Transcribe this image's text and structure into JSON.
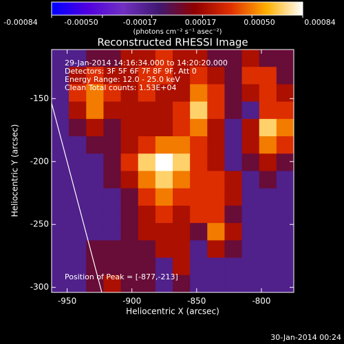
{
  "chart_data": {
    "type": "heatmap",
    "title": "Reconstructed RHESSI Image",
    "xlabel": "Heliocentric X (arcsec)",
    "ylabel": "Heliocentric Y (arcsec)",
    "xlim": [
      -962,
      -775
    ],
    "ylim": [
      -304,
      -111
    ],
    "xticks": [
      -950,
      -900,
      -850,
      -800
    ],
    "yticks": [
      -150,
      -200,
      -250,
      -300
    ],
    "colorbar": {
      "label": "(photons cm⁻² s⁻¹ asec⁻²)",
      "zlim": [
        -0.00084,
        0.00084
      ],
      "ticks": [
        -0.00084,
        -0.0005,
        -0.00017,
        0.00017,
        0.0005,
        0.00084
      ],
      "tick_labels": [
        "-0.00084",
        "-0.00050",
        "-0.00017",
        "0.00017",
        "0.00050",
        "0.00084"
      ],
      "colors": [
        "#0000ff",
        "#5000e0",
        "#7030c0",
        "#401870",
        "#900000",
        "#e03000",
        "#ffb000",
        "#ffffff"
      ]
    },
    "annotations": [
      "29-Jan-2014 14:16:34.000 to 14:20:20.000",
      "Detectors: 3F 5F 6F 7F 8F 9F, Att 0",
      "Energy Range: 12.0 - 25.0 keV",
      "Clean    Total counts: 1.53E+04"
    ],
    "peak_label": "Position of Peak = [-877,-213]",
    "footer": "30-Jan-2014 00:24",
    "z": [
      [
        -0.0002,
        -0.0002,
        0,
        0,
        0.0002,
        0.0002,
        0.00035,
        0.0002,
        0.0002,
        0,
        0,
        0.0002,
        0,
        0
      ],
      [
        -0.0002,
        0.0002,
        0.00035,
        0.0002,
        0.0002,
        0.00035,
        0.00035,
        0.0002,
        0.00035,
        0.0002,
        0,
        0.00035,
        0.00035,
        0
      ],
      [
        -0.0002,
        0.00035,
        0.0005,
        0.00035,
        0.0002,
        0.00035,
        0.0002,
        0.0002,
        0.0005,
        0.00035,
        0,
        0.0002,
        0.00035,
        0.0002
      ],
      [
        -0.0002,
        0.0002,
        0.0005,
        0.0002,
        0.0002,
        0.0002,
        0.0002,
        0.00035,
        0.0007,
        0.00035,
        0,
        -0.0002,
        0.00035,
        0.00035
      ],
      [
        -0.0002,
        0,
        0.0002,
        0,
        0.0002,
        0.0002,
        0.0002,
        0.00035,
        0.0005,
        0.0002,
        -0.0002,
        0.0002,
        0.0007,
        0.0005
      ],
      [
        -0.0002,
        -0.0002,
        0,
        0,
        0.0002,
        0.00035,
        0.0005,
        0.0005,
        0.00035,
        0.0002,
        -0.0002,
        0.0002,
        0.0005,
        0.00035
      ],
      [
        -0.0002,
        -0.0002,
        -0.0002,
        0,
        0.00035,
        0.0007,
        0.00084,
        0.0007,
        0.00035,
        0.0002,
        -0.0002,
        0,
        0.0002,
        0
      ],
      [
        -0.0002,
        -0.0002,
        -0.0002,
        0,
        0.0002,
        0.0005,
        0.0007,
        0.0005,
        0.00035,
        0.00035,
        0.0002,
        -0.0002,
        0,
        -0.0002
      ],
      [
        -0.0002,
        -0.0002,
        -0.0002,
        -0.0002,
        0,
        0.00035,
        0.0005,
        0.00035,
        0.00035,
        0.00035,
        0.0002,
        -0.0002,
        -0.0002,
        -0.0002
      ],
      [
        -0.0002,
        -0.0002,
        -0.0002,
        -0.0002,
        0,
        0.0002,
        0.00035,
        0.0002,
        0.00035,
        0.00035,
        0,
        -0.0002,
        -0.0002,
        -0.0002
      ],
      [
        -0.0002,
        -0.0002,
        -0.0002,
        -0.0002,
        0,
        0.0002,
        0.0002,
        0.0002,
        0,
        0.0005,
        0.0002,
        -0.0002,
        -0.0002,
        -0.0002
      ],
      [
        -0.0002,
        -0.0002,
        0,
        0,
        0,
        0,
        0.0002,
        0.0002,
        -0.0002,
        0.0002,
        0,
        -0.0002,
        -0.0002,
        -0.0002
      ],
      [
        -0.0002,
        -0.0002,
        0,
        0,
        0,
        0,
        -0.0002,
        0.0002,
        -0.0002,
        -0.0002,
        -0.0002,
        -0.0002,
        -0.0002,
        -0.0002
      ],
      [
        -0.0002,
        -0.0002,
        0,
        0.0002,
        0,
        0,
        -0.0002,
        0,
        -0.0002,
        -0.0002,
        -0.0002,
        -0.0002,
        -0.0002,
        -0.0002
      ]
    ]
  }
}
